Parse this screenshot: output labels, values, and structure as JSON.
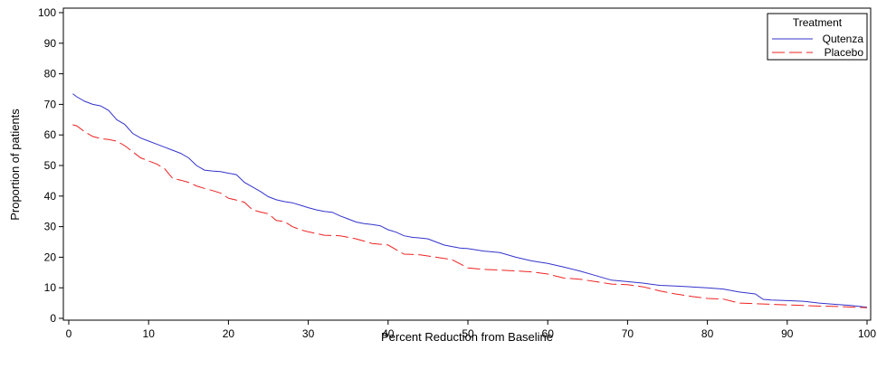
{
  "chart_data": {
    "type": "line",
    "title": "",
    "xlabel": "Percent Reduction from Baseline",
    "ylabel": "Proportion of patients",
    "xlim": [
      0,
      100
    ],
    "ylim": [
      0,
      100
    ],
    "x_ticks": [
      0,
      10,
      20,
      30,
      40,
      50,
      60,
      70,
      80,
      90,
      100
    ],
    "y_ticks": [
      0,
      10,
      20,
      30,
      40,
      50,
      60,
      70,
      80,
      90,
      100
    ],
    "grid": false,
    "legend": {
      "title": "Treatment",
      "position": "top-right",
      "entries": [
        "Qutenza",
        "Placebo"
      ]
    },
    "series": [
      {
        "name": "Qutenza",
        "color": "#3333cc",
        "style": "solid",
        "x": [
          0.5,
          1,
          2,
          3,
          4,
          5,
          6,
          7,
          8,
          9,
          10,
          11,
          12,
          13,
          14,
          15,
          16,
          17,
          18,
          19,
          20,
          21,
          22,
          23,
          24,
          25,
          26,
          27,
          28,
          29,
          30,
          31,
          32,
          33,
          34,
          35,
          36,
          37,
          38,
          39,
          40,
          41,
          42,
          43,
          44,
          45,
          46,
          47,
          48,
          49,
          50,
          52,
          54,
          56,
          58,
          60,
          62,
          64,
          66,
          68,
          70,
          72,
          74,
          76,
          78,
          80,
          82,
          84,
          86,
          87,
          88,
          90,
          92,
          94,
          96,
          98,
          100
        ],
        "y": [
          73.5,
          72.5,
          71,
          70,
          69.5,
          68,
          65,
          63.5,
          60.5,
          59,
          58,
          57,
          56,
          55,
          54,
          52.5,
          50,
          48.5,
          48.2,
          48,
          47.5,
          47,
          44.5,
          43,
          41.5,
          39.8,
          38.8,
          38.2,
          37.8,
          37,
          36.2,
          35.5,
          35,
          34.7,
          33.5,
          32.5,
          31.5,
          31,
          30.7,
          30.3,
          29,
          28.2,
          27,
          26.5,
          26.3,
          26,
          25,
          24,
          23.5,
          23,
          22.8,
          22,
          21.5,
          20,
          18.8,
          18,
          16.8,
          15.5,
          14,
          12.5,
          12,
          11.5,
          10.8,
          10.6,
          10.3,
          10,
          9.6,
          8.6,
          8,
          6.2,
          6,
          5.8,
          5.6,
          5,
          4.6,
          4.2,
          3.6
        ]
      },
      {
        "name": "Placebo",
        "color": "#ee2222",
        "style": "dashed",
        "x": [
          0.5,
          1,
          2,
          3,
          4,
          5,
          6,
          7,
          8,
          9,
          10,
          11,
          12,
          13,
          14,
          15,
          16,
          17,
          18,
          19,
          20,
          21,
          22,
          23,
          24,
          25,
          26,
          27,
          28,
          29,
          30,
          32,
          34,
          36,
          38,
          40,
          42,
          44,
          46,
          48,
          50,
          52,
          54,
          56,
          58,
          60,
          62,
          64,
          66,
          68,
          70,
          72,
          74,
          76,
          78,
          80,
          82,
          84,
          86,
          88,
          90,
          92,
          94,
          96,
          98,
          100
        ],
        "y": [
          63.3,
          63,
          61,
          59.5,
          58.8,
          58.5,
          58,
          56.5,
          54.5,
          52.5,
          51.5,
          50.5,
          49,
          45.8,
          45.2,
          44.5,
          43.3,
          42.5,
          41.8,
          41,
          39.3,
          38.7,
          38,
          35.5,
          34.8,
          34.2,
          32,
          31.7,
          30,
          29,
          28.3,
          27.2,
          27,
          26,
          24.5,
          24,
          21,
          20.8,
          20,
          19.2,
          16.5,
          16,
          15.8,
          15.5,
          15.2,
          14.5,
          13.2,
          12.8,
          12,
          11.2,
          11,
          10.3,
          9,
          8,
          7.2,
          6.5,
          6.3,
          5,
          4.8,
          4.6,
          4.4,
          4.2,
          4,
          3.9,
          3.7,
          3.5
        ]
      }
    ]
  }
}
